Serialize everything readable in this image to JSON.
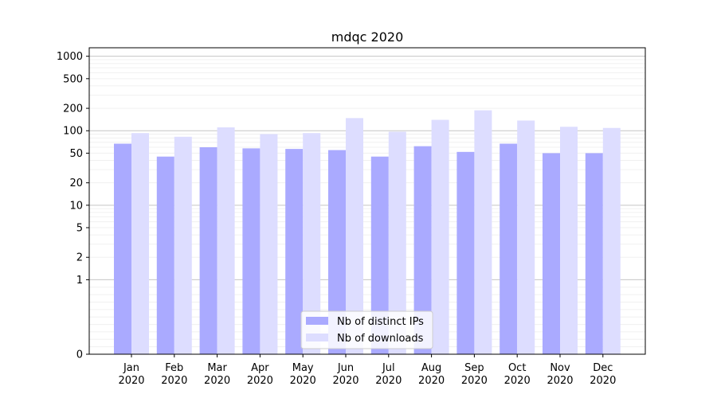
{
  "chart_data": {
    "type": "bar",
    "title": "mdqc 2020",
    "xlabel": "",
    "ylabel": "",
    "yscale": "symlog",
    "ylim": [
      0,
      1300
    ],
    "yticks": [
      0,
      1,
      2,
      5,
      10,
      20,
      50,
      100,
      200,
      500,
      1000
    ],
    "grid": true,
    "legend_position": "bottom-center",
    "categories": [
      "Jan\n2020",
      "Feb\n2020",
      "Mar\n2020",
      "Apr\n2020",
      "May\n2020",
      "Jun\n2020",
      "Jul\n2020",
      "Aug\n2020",
      "Sep\n2020",
      "Oct\n2020",
      "Nov\n2020",
      "Dec\n2020"
    ],
    "series": [
      {
        "name": "Nb of distinct IPs",
        "color": "#aaaaff",
        "values": [
          67,
          45,
          60,
          58,
          57,
          55,
          45,
          62,
          52,
          67,
          50,
          50
        ]
      },
      {
        "name": "Nb of downloads",
        "color": "#ddddff",
        "values": [
          93,
          83,
          111,
          90,
          93,
          148,
          97,
          140,
          188,
          137,
          113,
          109
        ]
      }
    ]
  }
}
